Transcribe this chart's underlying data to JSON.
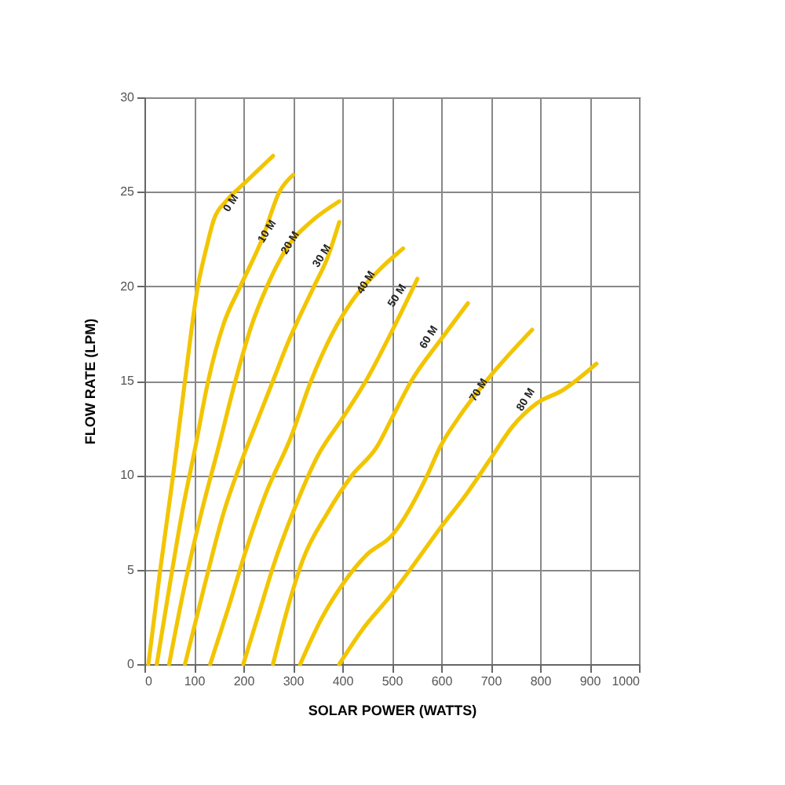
{
  "chart_data": {
    "type": "line",
    "xlabel": "SOLAR POWER (WATTS)",
    "ylabel": "FLOW RATE (LPM)",
    "xlim": [
      0,
      1000
    ],
    "xticks": [
      0,
      100,
      200,
      300,
      400,
      500,
      600,
      700,
      800,
      900,
      1000
    ],
    "ylim": [
      0,
      30
    ],
    "yticks": [
      0,
      5,
      10,
      15,
      20,
      25,
      30
    ],
    "grid": true,
    "marker": "none",
    "line_style": "solid",
    "series": [
      {
        "color": "#f2c500",
        "x": [
          8,
          32,
          58,
          82,
          108,
          125,
          140,
          165,
          200,
          260
        ],
        "values": [
          0,
          5,
          10,
          15,
          20,
          22,
          23.5,
          24.5,
          25.4,
          26.9
        ]
      },
      {
        "color": "#f2c500",
        "x": [
          25,
          50,
          76,
          103,
          129,
          160,
          194,
          238,
          273,
          301
        ],
        "values": [
          0,
          4,
          8,
          11.5,
          15,
          18,
          20,
          22.5,
          25,
          25.9
        ]
      },
      {
        "color": "#f2c500",
        "x": [
          50,
          80,
          115,
          150,
          184,
          215,
          248,
          295,
          336,
          394
        ],
        "values": [
          0,
          4,
          8,
          11.5,
          15,
          17.8,
          20,
          22.3,
          23.4,
          24.5
        ]
      },
      {
        "color": "#f2c500",
        "x": [
          82,
          120,
          160,
          200,
          230,
          260,
          290,
          343,
          370,
          394
        ],
        "values": [
          0,
          4,
          8,
          11,
          13,
          15,
          17,
          20,
          21.5,
          23.4
        ]
      },
      {
        "color": "#f2c500",
        "x": [
          133,
          170,
          205,
          245,
          296,
          337,
          380,
          422,
          480,
          523
        ],
        "values": [
          0,
          3,
          6,
          9,
          12,
          15,
          17.5,
          19.3,
          21,
          22
        ]
      },
      {
        "color": "#f2c500",
        "x": [
          200,
          235,
          262,
          300,
          350,
          400,
          448,
          500,
          552
        ],
        "values": [
          0,
          3,
          5.3,
          8,
          11,
          13,
          15,
          17.6,
          20.4
        ]
      },
      {
        "color": "#f2c500",
        "x": [
          260,
          290,
          320,
          370,
          420,
          470,
          500,
          540,
          600,
          654
        ],
        "values": [
          0,
          3,
          5.5,
          8,
          10,
          11.5,
          13,
          15,
          17.2,
          19.1
        ]
      },
      {
        "color": "#f2c500",
        "x": [
          315,
          360,
          400,
          450,
          500,
          572,
          598,
          634,
          698,
          784
        ],
        "values": [
          0,
          2.5,
          4.2,
          5.8,
          6.8,
          10,
          11.5,
          13,
          15.2,
          17.7
        ]
      },
      {
        "color": "#f2c500",
        "x": [
          394,
          440,
          500,
          540,
          598,
          651,
          698,
          745,
          793,
          846,
          914
        ],
        "values": [
          0,
          1.8,
          3.7,
          5.1,
          7.2,
          9,
          10.8,
          12.6,
          13.8,
          14.5,
          15.9
        ]
      }
    ],
    "annotations": [
      {
        "text": "0 M",
        "x": 175,
        "y": 24.4
      },
      {
        "text": "10 M",
        "x": 248,
        "y": 22.9
      },
      {
        "text": "20 M",
        "x": 295,
        "y": 22.3
      },
      {
        "text": "30 M",
        "x": 359,
        "y": 21.6
      },
      {
        "text": "40 M",
        "x": 448,
        "y": 20.2
      },
      {
        "text": "50 M",
        "x": 511,
        "y": 19.5
      },
      {
        "text": "60 M",
        "x": 575,
        "y": 17.3
      },
      {
        "text": "70 M",
        "x": 676,
        "y": 14.5
      },
      {
        "text": "80 M",
        "x": 771,
        "y": 14.0
      }
    ]
  }
}
